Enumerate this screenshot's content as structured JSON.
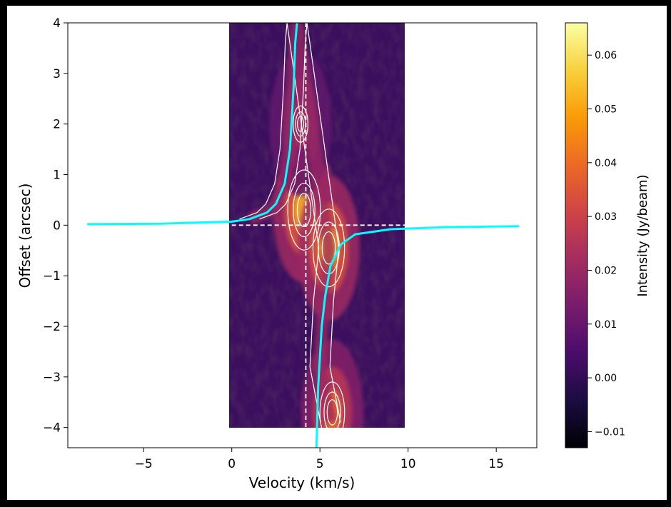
{
  "chart_data": [
    {
      "type": "heatmap",
      "title": "",
      "xlabel": "Velocity (km/s)",
      "ylabel": "Offset (arcsec)",
      "xlim": [
        -9.3,
        17.3
      ],
      "ylim": [
        -4.4,
        4.0
      ],
      "x_ticks": [
        {
          "value": -5,
          "label": "−5"
        },
        {
          "value": 0,
          "label": "0"
        },
        {
          "value": 5,
          "label": "5"
        },
        {
          "value": 10,
          "label": "10"
        },
        {
          "value": 15,
          "label": "15"
        }
      ],
      "y_ticks": [
        {
          "value": 4,
          "label": "4"
        },
        {
          "value": 3,
          "label": "3"
        },
        {
          "value": 2,
          "label": "2"
        },
        {
          "value": 1,
          "label": "1"
        },
        {
          "value": 0,
          "label": "0"
        },
        {
          "value": -1,
          "label": "−1"
        },
        {
          "value": -2,
          "label": "−2"
        },
        {
          "value": -3,
          "label": "−3"
        },
        {
          "value": -4,
          "label": "−4"
        }
      ],
      "image_extent": {
        "velocity": [
          0,
          10
        ],
        "offset": [
          -4,
          4
        ]
      },
      "emission_components": [
        {
          "velocity": 4.1,
          "offset": 0.3,
          "peak": 0.066
        },
        {
          "velocity": 5.5,
          "offset": -0.45,
          "peak": 0.064
        },
        {
          "velocity": 5.7,
          "offset": -3.7,
          "peak": 0.05
        },
        {
          "velocity": 3.9,
          "offset": 2.0,
          "peak": 0.03
        }
      ],
      "reference_lines": {
        "systemic_velocity": 4.2,
        "offset": 0
      },
      "keplerian_curves": {
        "color": "#00ffff",
        "upper_branch": [
          [
            -8.2,
            0.02
          ],
          [
            -4,
            0.03
          ],
          [
            0,
            0.07
          ],
          [
            1,
            0.12
          ],
          [
            2,
            0.25
          ],
          [
            2.5,
            0.42
          ],
          [
            3,
            0.82
          ],
          [
            3.3,
            1.5
          ],
          [
            3.5,
            2.7
          ],
          [
            3.6,
            3.6
          ],
          [
            3.7,
            4.0
          ]
        ],
        "lower_branch": [
          [
            4.8,
            -4.4
          ],
          [
            4.9,
            -3.2
          ],
          [
            5.1,
            -2.0
          ],
          [
            5.3,
            -1.4
          ],
          [
            5.6,
            -0.8
          ],
          [
            6.2,
            -0.38
          ],
          [
            7,
            -0.18
          ],
          [
            9,
            -0.08
          ],
          [
            12,
            -0.04
          ],
          [
            16.3,
            -0.02
          ]
        ]
      }
    },
    {
      "type": "colorbar",
      "label": "Intensity (Jy/beam)",
      "range": [
        -0.013,
        0.066
      ],
      "colormap": [
        "#000004",
        "#1b0c41",
        "#4a0c6b",
        "#781c6d",
        "#a52c60",
        "#cf4446",
        "#ed6925",
        "#fb9b06",
        "#f7d13d",
        "#fcffa4"
      ],
      "ticks": [
        {
          "value": 0.06,
          "label": "0.06"
        },
        {
          "value": 0.05,
          "label": "0.05"
        },
        {
          "value": 0.04,
          "label": "0.04"
        },
        {
          "value": 0.03,
          "label": "0.03"
        },
        {
          "value": 0.02,
          "label": "0.02"
        },
        {
          "value": 0.01,
          "label": "0.01"
        },
        {
          "value": 0.0,
          "label": "0.00"
        },
        {
          "value": -0.01,
          "label": "−0.01"
        }
      ]
    }
  ]
}
